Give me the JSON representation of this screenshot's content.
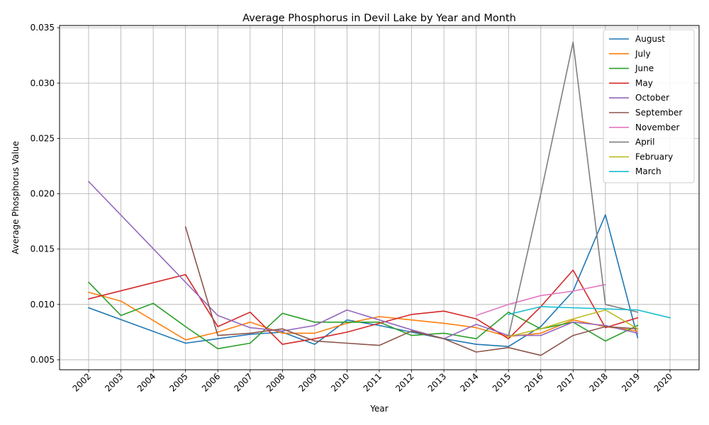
{
  "chart_data": {
    "type": "line",
    "title": "Average Phosphorus in Devil Lake by Year and Month",
    "xlabel": "Year",
    "ylabel": "Average Phosphorus Value",
    "xlim": [
      2001.1,
      2020.9
    ],
    "ylim": [
      0.0041,
      0.0352
    ],
    "x_ticks": [
      2002,
      2003,
      2004,
      2005,
      2006,
      2007,
      2008,
      2009,
      2010,
      2011,
      2012,
      2013,
      2014,
      2015,
      2016,
      2017,
      2018,
      2019,
      2020
    ],
    "x_tick_labels": [
      "2002",
      "2003",
      "2004",
      "2005",
      "2006",
      "2007",
      "2008",
      "2009",
      "2010",
      "2011",
      "2012",
      "2013",
      "2014",
      "2015",
      "2016",
      "2017",
      "2018",
      "2019",
      "2020"
    ],
    "y_ticks": [
      0.005,
      0.01,
      0.015,
      0.02,
      0.025,
      0.03,
      0.035
    ],
    "y_tick_labels": [
      "0.005",
      "0.010",
      "0.015",
      "0.020",
      "0.025",
      "0.030",
      "0.035"
    ],
    "grid": true,
    "legend_position": "top-right",
    "series": [
      {
        "name": "August",
        "color": "#1f77b4",
        "x": [
          2002,
          2005,
          2006,
          2007,
          2008,
          2009,
          2010,
          2011,
          2012,
          2013,
          2014,
          2015,
          2016,
          2017,
          2018,
          2019
        ],
        "y": [
          0.0097,
          0.0065,
          0.0069,
          0.0073,
          0.0075,
          0.0064,
          0.0086,
          0.0081,
          0.0075,
          0.0069,
          0.0064,
          0.0062,
          0.008,
          0.0112,
          0.0181,
          0.007
        ]
      },
      {
        "name": "July",
        "color": "#ff7f0e",
        "x": [
          2002,
          2003,
          2005,
          2006,
          2007,
          2008,
          2009,
          2010,
          2011,
          2012,
          2013,
          2014,
          2015,
          2016,
          2017,
          2018,
          2019
        ],
        "y": [
          0.0111,
          0.0103,
          0.0068,
          0.0075,
          0.0084,
          0.0074,
          0.0074,
          0.0083,
          0.0089,
          0.0086,
          0.0083,
          0.0079,
          0.0071,
          0.0074,
          0.0086,
          0.008,
          0.0076
        ]
      },
      {
        "name": "June",
        "color": "#2ca02c",
        "x": [
          2002,
          2003,
          2004,
          2005,
          2006,
          2007,
          2008,
          2009,
          2010,
          2011,
          2012,
          2013,
          2014,
          2015,
          2016,
          2017,
          2018,
          2019
        ],
        "y": [
          0.012,
          0.009,
          0.0101,
          0.008,
          0.006,
          0.0065,
          0.0092,
          0.0084,
          0.0084,
          0.0084,
          0.0072,
          0.0074,
          0.0069,
          0.0093,
          0.0078,
          0.0084,
          0.0067,
          0.0081
        ]
      },
      {
        "name": "May",
        "color": "#d62728",
        "x": [
          2002,
          2005,
          2006,
          2007,
          2008,
          2009,
          2010,
          2011,
          2012,
          2013,
          2014,
          2015,
          2016,
          2017,
          2018,
          2019
        ],
        "y": [
          0.0105,
          0.0127,
          0.008,
          0.0093,
          0.0064,
          0.0069,
          0.0075,
          0.0083,
          0.0091,
          0.0094,
          0.0087,
          0.0069,
          0.0098,
          0.0131,
          0.0079,
          0.0088
        ]
      },
      {
        "name": "October",
        "color": "#9467bd",
        "x": [
          2002,
          2005,
          2006,
          2007,
          2008,
          2009,
          2010,
          2011,
          2012,
          2013,
          2014,
          2015,
          2016,
          2017,
          2018,
          2019
        ],
        "y": [
          0.0211,
          0.012,
          0.009,
          0.0079,
          0.0076,
          0.0081,
          0.0095,
          0.0086,
          0.0077,
          0.0069,
          0.0082,
          0.0072,
          0.0072,
          0.0084,
          0.0081,
          0.0074
        ]
      },
      {
        "name": "September",
        "color": "#8c564b",
        "x": [
          2005,
          2006,
          2007,
          2008,
          2009,
          2010,
          2011,
          2012,
          2013,
          2014,
          2015,
          2016,
          2017,
          2018,
          2019
        ],
        "y": [
          0.017,
          0.0072,
          0.0074,
          0.0078,
          0.0067,
          0.0065,
          0.0063,
          0.0076,
          0.0069,
          0.0057,
          0.0061,
          0.0054,
          0.0072,
          0.008,
          0.0078
        ]
      },
      {
        "name": "November",
        "color": "#e377c2",
        "x": [
          2014,
          2015,
          2016,
          2017,
          2018
        ],
        "y": [
          0.009,
          0.01,
          0.0108,
          0.0112,
          0.0118
        ]
      },
      {
        "name": "April",
        "color": "#7f7f7f",
        "x": [
          2015,
          2016,
          2017,
          2018,
          2019
        ],
        "y": [
          0.0071,
          0.02,
          0.0337,
          0.01,
          0.0093
        ]
      },
      {
        "name": "February",
        "color": "#bcbd22",
        "x": [
          2015,
          2016,
          2017,
          2018,
          2019
        ],
        "y": [
          0.0071,
          0.0078,
          0.0087,
          0.0095,
          0.0078
        ]
      },
      {
        "name": "March",
        "color": "#17becf",
        "x": [
          2015,
          2016,
          2017,
          2018,
          2019,
          2020
        ],
        "y": [
          0.0091,
          0.0098,
          0.0097,
          0.0096,
          0.0095,
          0.0088
        ]
      }
    ]
  }
}
